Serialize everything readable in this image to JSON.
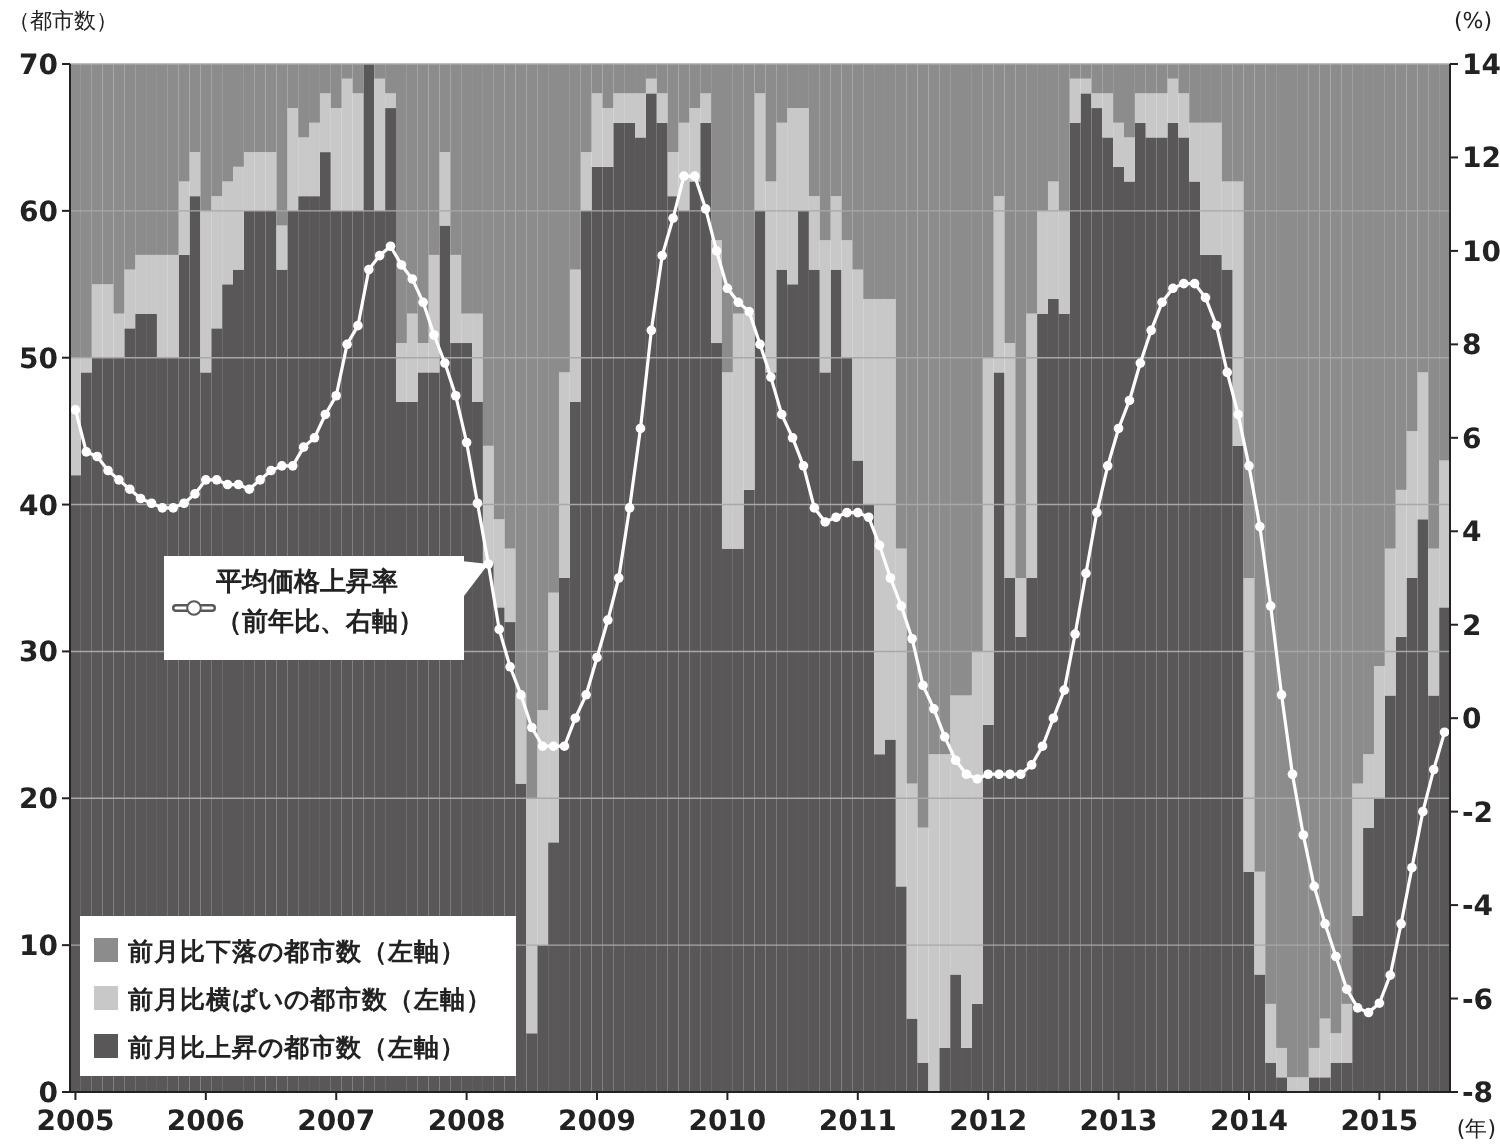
{
  "chart_data": {
    "type": "bar",
    "stacked": true,
    "grid": "y",
    "legend": "bottom left",
    "ylabel": "（都市数）",
    "y2label": "(%)",
    "xlabel": "(年)",
    "ylim": [
      0,
      70
    ],
    "yticks": [
      0,
      10,
      20,
      30,
      40,
      50,
      60,
      70
    ],
    "y2lim": [
      -8,
      14
    ],
    "y2ticks": [
      -8,
      -6,
      -4,
      -2,
      0,
      2,
      4,
      6,
      8,
      10,
      12,
      14
    ],
    "categories": [
      "2005",
      null,
      null,
      null,
      null,
      null,
      null,
      null,
      null,
      null,
      null,
      null,
      "2006",
      null,
      null,
      null,
      null,
      null,
      null,
      null,
      null,
      null,
      null,
      null,
      "2007",
      null,
      null,
      null,
      null,
      null,
      null,
      null,
      null,
      null,
      null,
      null,
      "2008",
      null,
      null,
      null,
      null,
      null,
      null,
      null,
      null,
      null,
      null,
      null,
      "2009",
      null,
      null,
      null,
      null,
      null,
      null,
      null,
      null,
      null,
      null,
      null,
      "2010",
      null,
      null,
      null,
      null,
      null,
      null,
      null,
      null,
      null,
      null,
      null,
      "2011",
      null,
      null,
      null,
      null,
      null,
      null,
      null,
      null,
      null,
      null,
      null,
      "2012",
      null,
      null,
      null,
      null,
      null,
      null,
      null,
      null,
      null,
      null,
      null,
      "2013",
      null,
      null,
      null,
      null,
      null,
      null,
      null,
      null,
      null,
      null,
      null,
      "2014",
      null,
      null,
      null,
      null,
      null,
      null,
      null,
      null,
      null,
      null,
      null,
      "2015",
      null,
      null,
      null,
      null,
      null,
      null
    ],
    "series": [
      {
        "name": "前月比上昇の都市数（左軸）",
        "color": "#595757",
        "values": [
          42,
          49,
          50,
          50,
          50,
          52,
          53,
          53,
          50,
          50,
          57,
          61,
          49,
          52,
          55,
          56,
          60,
          60,
          60,
          56,
          60,
          61,
          61,
          64,
          60,
          60,
          60,
          70,
          60,
          67,
          47,
          47,
          49,
          49,
          59,
          51,
          51,
          47,
          36,
          33,
          32,
          21,
          4,
          10,
          17,
          35,
          47,
          60,
          63,
          63,
          66,
          66,
          65,
          68,
          66,
          61,
          60,
          62,
          66,
          51,
          37,
          37,
          41,
          60,
          49,
          56,
          55,
          60,
          56,
          49,
          56,
          50,
          43,
          40,
          23,
          24,
          14,
          5,
          2,
          0,
          3,
          8,
          3,
          6,
          25,
          49,
          35,
          31,
          35,
          53,
          54,
          53,
          66,
          68,
          67,
          65,
          63,
          62,
          66,
          65,
          65,
          66,
          65,
          62,
          57,
          57,
          56,
          44,
          15,
          8,
          2,
          1,
          0,
          0,
          1,
          1,
          2,
          2,
          12,
          18,
          20,
          27,
          31,
          35,
          39,
          27,
          33
        ]
      },
      {
        "name": "前月比横ばいの都市数（左軸）",
        "color": "#c8c8c8",
        "values": [
          8,
          1,
          5,
          5,
          3,
          4,
          4,
          4,
          7,
          7,
          5,
          3,
          11,
          9,
          7,
          7,
          4,
          4,
          4,
          3,
          7,
          4,
          5,
          4,
          7,
          9,
          8,
          0,
          9,
          1,
          4,
          6,
          2,
          8,
          5,
          6,
          2,
          6,
          8,
          6,
          5,
          6,
          16,
          16,
          17,
          14,
          9,
          4,
          5,
          4,
          2,
          2,
          3,
          1,
          2,
          3,
          6,
          5,
          2,
          7,
          12,
          16,
          12,
          8,
          13,
          10,
          12,
          7,
          5,
          9,
          5,
          8,
          13,
          14,
          31,
          30,
          23,
          16,
          16,
          23,
          20,
          19,
          24,
          24,
          25,
          12,
          16,
          4,
          18,
          7,
          8,
          7,
          3,
          1,
          1,
          3,
          3,
          3,
          2,
          3,
          3,
          3,
          3,
          4,
          9,
          9,
          6,
          18,
          20,
          7,
          4,
          2,
          1,
          1,
          2,
          4,
          2,
          4,
          9,
          5,
          9,
          10,
          10,
          10,
          10,
          10,
          10
        ]
      },
      {
        "name": "前月比下落の都市数（左軸）",
        "color": "#8c8c8c",
        "values": [
          20,
          20,
          15,
          15,
          17,
          14,
          13,
          13,
          13,
          13,
          8,
          6,
          10,
          9,
          8,
          7,
          6,
          6,
          6,
          11,
          3,
          5,
          4,
          2,
          3,
          1,
          2,
          0,
          1,
          2,
          19,
          17,
          19,
          13,
          6,
          13,
          17,
          17,
          26,
          31,
          33,
          43,
          50,
          44,
          36,
          21,
          14,
          6,
          2,
          3,
          2,
          2,
          2,
          1,
          2,
          6,
          4,
          3,
          2,
          12,
          21,
          17,
          17,
          2,
          8,
          4,
          3,
          3,
          9,
          12,
          9,
          12,
          14,
          16,
          16,
          16,
          33,
          49,
          52,
          47,
          47,
          43,
          43,
          40,
          20,
          9,
          19,
          35,
          17,
          10,
          8,
          10,
          1,
          1,
          2,
          2,
          4,
          5,
          2,
          2,
          2,
          1,
          2,
          4,
          4,
          4,
          8,
          8,
          35,
          55,
          64,
          67,
          69,
          69,
          67,
          65,
          66,
          64,
          49,
          47,
          41,
          33,
          29,
          25,
          21,
          33,
          27
        ]
      },
      {
        "name": "平均価格上昇率（前年比、右軸）",
        "type": "line",
        "axis": "y2",
        "color": "#ffffff",
        "marker": "circle",
        "values": [
          6.6,
          5.7,
          5.6,
          5.3,
          5.1,
          4.9,
          4.7,
          4.6,
          4.5,
          4.5,
          4.6,
          4.8,
          5.1,
          5.1,
          5.0,
          5.0,
          4.9,
          5.1,
          5.3,
          5.4,
          5.4,
          5.8,
          6.0,
          6.5,
          6.9,
          8.0,
          8.4,
          9.6,
          9.9,
          10.1,
          9.7,
          9.4,
          8.9,
          8.2,
          7.6,
          6.9,
          5.9,
          4.6,
          3.3,
          1.9,
          1.1,
          0.5,
          -0.2,
          -0.6,
          -0.6,
          -0.6,
          0.0,
          0.5,
          1.3,
          2.1,
          3.0,
          4.5,
          6.2,
          8.3,
          9.9,
          10.7,
          11.6,
          11.6,
          10.9,
          10.0,
          9.2,
          8.9,
          8.7,
          8.0,
          7.3,
          6.5,
          6.0,
          5.4,
          4.5,
          4.2,
          4.3,
          4.4,
          4.4,
          4.3,
          3.7,
          3.0,
          2.4,
          1.7,
          0.7,
          0.2,
          -0.4,
          -0.9,
          -1.2,
          -1.3,
          -1.2,
          -1.2,
          -1.2,
          -1.2,
          -1.0,
          -0.6,
          0.0,
          0.6,
          1.8,
          3.1,
          4.4,
          5.4,
          6.2,
          6.8,
          7.6,
          8.3,
          8.9,
          9.2,
          9.3,
          9.3,
          9.0,
          8.4,
          7.4,
          6.5,
          5.4,
          4.1,
          2.4,
          0.5,
          -1.2,
          -2.5,
          -3.6,
          -4.4,
          -5.1,
          -5.8,
          -6.2,
          -6.3,
          -6.1,
          -5.5,
          -4.4,
          -3.2,
          -2.0,
          -1.1,
          -0.3
        ]
      }
    ]
  }
}
